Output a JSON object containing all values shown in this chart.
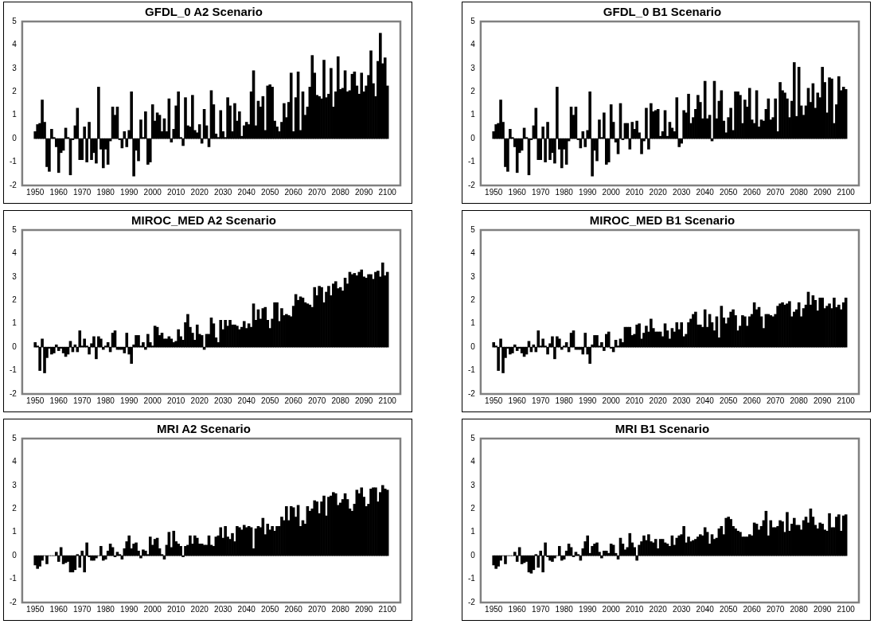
{
  "chart_data": [
    {
      "type": "bar",
      "title": "GFDL_0 A2 Scenario",
      "color": "#000000",
      "xlim": [
        1949.5,
        2100.5
      ],
      "xticks": [
        1950,
        1960,
        1970,
        1980,
        1990,
        2000,
        2010,
        2020,
        2030,
        2040,
        2050,
        2060,
        2070,
        2080,
        2090,
        2100
      ],
      "ylim": [
        -2,
        5
      ],
      "yticks": [
        -2,
        -1,
        0,
        1,
        2,
        3,
        4,
        5
      ],
      "x": [
        1950,
        1951,
        1952,
        1953,
        1954,
        1955,
        1956,
        1957,
        1958,
        1959,
        1960,
        1961,
        1962,
        1963,
        1964,
        1965,
        1966,
        1967,
        1968,
        1969,
        1970,
        1971,
        1972,
        1973,
        1974,
        1975,
        1976,
        1977,
        1978,
        1979,
        1980,
        1981,
        1982,
        1983,
        1984,
        1985,
        1986,
        1987,
        1988,
        1989,
        1990,
        1991,
        1992,
        1993,
        1994,
        1995,
        1996,
        1997,
        1998,
        1999,
        2000,
        2001,
        2002,
        2003,
        2004,
        2005,
        2006,
        2007,
        2008,
        2009,
        2010,
        2011,
        2012,
        2013,
        2014,
        2015,
        2016,
        2017,
        2018,
        2019,
        2020,
        2021,
        2022,
        2023,
        2024,
        2025,
        2026,
        2027,
        2028,
        2029,
        2030,
        2031,
        2032,
        2033,
        2034,
        2035,
        2036,
        2037,
        2038,
        2039,
        2040,
        2041,
        2042,
        2043,
        2044,
        2045,
        2046,
        2047,
        2048,
        2049,
        2050,
        2051,
        2052,
        2053,
        2054,
        2055,
        2056,
        2057,
        2058,
        2059,
        2060,
        2061,
        2062,
        2063,
        2064,
        2065,
        2066,
        2067,
        2068,
        2069,
        2070,
        2071,
        2072,
        2073,
        2074,
        2075,
        2076,
        2077,
        2078,
        2079,
        2080,
        2081,
        2082,
        2083,
        2084,
        2085,
        2086,
        2087,
        2088,
        2089,
        2090,
        2091,
        2092,
        2093,
        2094,
        2095,
        2096,
        2097,
        2098,
        2099,
        2100
      ],
      "values": [
        0.3,
        0.6,
        0.65,
        1.65,
        0.7,
        -1.2,
        -1.4,
        0.4,
        0.05,
        -0.35,
        -1.45,
        -0.6,
        -0.5,
        0.45,
        0.05,
        -1.55,
        -0.05,
        0.55,
        1.3,
        -0.9,
        -0.9,
        0.5,
        -1.0,
        0.7,
        -0.9,
        -0.6,
        -1.05,
        2.2,
        -0.45,
        -1.25,
        -0.45,
        -1.1,
        -0.1,
        1.35,
        1.0,
        1.35,
        -0.05,
        -0.4,
        0.3,
        -0.35,
        0.35,
        2.0,
        -1.6,
        -0.5,
        -0.95,
        0.8,
        0.05,
        1.15,
        -1.1,
        -1.0,
        1.45,
        0.75,
        1.1,
        1.0,
        0.3,
        0.85,
        0.3,
        1.7,
        -0.15,
        0.4,
        1.4,
        2.0,
        0.05,
        -0.3,
        1.75,
        0.55,
        0.5,
        1.85,
        0.35,
        0.25,
        0.6,
        -0.2,
        1.25,
        0.55,
        -0.35,
        2.05,
        1.45,
        0.2,
        0.05,
        1.2,
        0.3,
        0.05,
        1.75,
        1.4,
        0.3,
        1.5,
        0.75,
        1.15,
        0.1,
        0.55,
        0.7,
        0.6,
        2.0,
        2.9,
        0.55,
        1.6,
        1.35,
        1.8,
        0.35,
        2.25,
        2.3,
        2.2,
        0.75,
        0.5,
        0.3,
        0.7,
        1.5,
        0.9,
        1.55,
        2.8,
        0.3,
        1.75,
        2.85,
        0.35,
        2.0,
        1.0,
        1.35,
        2.2,
        3.55,
        2.8,
        1.85,
        1.8,
        1.7,
        3.35,
        1.75,
        1.9,
        3.0,
        1.35,
        2.0,
        3.5,
        2.1,
        2.15,
        2.9,
        2.0,
        2.05,
        2.75,
        2.85,
        2.25,
        1.9,
        2.8,
        2.0,
        2.25,
        2.7,
        3.75,
        2.35,
        1.8,
        3.3,
        4.5,
        3.2,
        3.45,
        2.25
      ]
    },
    {
      "type": "bar",
      "title": "GFDL_0 B1 Scenario",
      "color": "#000000",
      "xlim": [
        1949.5,
        2100.5
      ],
      "xticks": [
        1950,
        1960,
        1970,
        1980,
        1990,
        2000,
        2010,
        2020,
        2030,
        2040,
        2050,
        2060,
        2070,
        2080,
        2090,
        2100
      ],
      "ylim": [
        -2,
        5
      ],
      "yticks": [
        -2,
        -1,
        0,
        1,
        2,
        3,
        4,
        5
      ],
      "x": [
        1950,
        1951,
        1952,
        1953,
        1954,
        1955,
        1956,
        1957,
        1958,
        1959,
        1960,
        1961,
        1962,
        1963,
        1964,
        1965,
        1966,
        1967,
        1968,
        1969,
        1970,
        1971,
        1972,
        1973,
        1974,
        1975,
        1976,
        1977,
        1978,
        1979,
        1980,
        1981,
        1982,
        1983,
        1984,
        1985,
        1986,
        1987,
        1988,
        1989,
        1990,
        1991,
        1992,
        1993,
        1994,
        1995,
        1996,
        1997,
        1998,
        1999,
        2000,
        2001,
        2002,
        2003,
        2004,
        2005,
        2006,
        2007,
        2008,
        2009,
        2010,
        2011,
        2012,
        2013,
        2014,
        2015,
        2016,
        2017,
        2018,
        2019,
        2020,
        2021,
        2022,
        2023,
        2024,
        2025,
        2026,
        2027,
        2028,
        2029,
        2030,
        2031,
        2032,
        2033,
        2034,
        2035,
        2036,
        2037,
        2038,
        2039,
        2040,
        2041,
        2042,
        2043,
        2044,
        2045,
        2046,
        2047,
        2048,
        2049,
        2050,
        2051,
        2052,
        2053,
        2054,
        2055,
        2056,
        2057,
        2058,
        2059,
        2060,
        2061,
        2062,
        2063,
        2064,
        2065,
        2066,
        2067,
        2068,
        2069,
        2070,
        2071,
        2072,
        2073,
        2074,
        2075,
        2076,
        2077,
        2078,
        2079,
        2080,
        2081,
        2082,
        2083,
        2084,
        2085,
        2086,
        2087,
        2088,
        2089,
        2090,
        2091,
        2092,
        2093,
        2094,
        2095,
        2096,
        2097,
        2098,
        2099,
        2100
      ],
      "values": [
        0.3,
        0.6,
        0.65,
        1.65,
        0.7,
        -1.2,
        -1.4,
        0.4,
        0.05,
        -0.35,
        -1.45,
        -0.6,
        -0.5,
        0.45,
        0.05,
        -1.55,
        -0.05,
        0.55,
        1.3,
        -0.9,
        -0.9,
        0.5,
        -1.0,
        0.7,
        -0.9,
        -0.6,
        -1.05,
        2.2,
        -0.45,
        -1.25,
        -0.45,
        -1.1,
        -0.1,
        1.35,
        1.0,
        1.35,
        -0.05,
        -0.4,
        0.3,
        -0.35,
        0.35,
        2.0,
        -1.6,
        -0.5,
        -0.95,
        0.8,
        0.05,
        1.1,
        -1.1,
        -1.0,
        1.45,
        0.7,
        -0.15,
        -0.65,
        1.5,
        -0.05,
        0.65,
        0.65,
        -0.45,
        0.7,
        0.4,
        0.75,
        0.25,
        -0.65,
        -0.1,
        1.3,
        -0.45,
        1.5,
        1.15,
        1.2,
        1.25,
        0.1,
        0.3,
        1.2,
        0.1,
        0.7,
        0.45,
        0.3,
        1.75,
        -0.35,
        -0.2,
        1.2,
        1.1,
        1.9,
        0.65,
        0.9,
        1.25,
        1.85,
        1.55,
        0.85,
        2.45,
        0.85,
        1.0,
        -0.1,
        2.45,
        0.85,
        1.6,
        2.05,
        0.75,
        0.25,
        0.9,
        1.3,
        0.35,
        2.0,
        2.0,
        1.85,
        0.65,
        1.65,
        1.35,
        2.15,
        0.8,
        0.65,
        2.05,
        0.5,
        0.8,
        0.75,
        1.25,
        1.7,
        0.8,
        0.9,
        1.7,
        0.3,
        2.4,
        2.05,
        1.95,
        1.7,
        0.9,
        1.6,
        3.25,
        0.95,
        3.05,
        1.4,
        1.0,
        1.4,
        2.15,
        1.55,
        2.35,
        1.3,
        1.95,
        1.75,
        3.05,
        2.4,
        1.1,
        2.6,
        2.55,
        0.65,
        1.45,
        2.65,
        2.05,
        2.2,
        2.1
      ]
    },
    {
      "type": "bar",
      "title": "MIROC_MED A2 Scenario",
      "color": "#000000",
      "xlim": [
        1949.5,
        2100.5
      ],
      "xticks": [
        1950,
        1960,
        1970,
        1980,
        1990,
        2000,
        2010,
        2020,
        2030,
        2040,
        2050,
        2060,
        2070,
        2080,
        2090,
        2100
      ],
      "ylim": [
        -2,
        5
      ],
      "yticks": [
        -2,
        -1,
        0,
        1,
        2,
        3,
        4,
        5
      ],
      "x": [
        1950,
        1951,
        1952,
        1953,
        1954,
        1955,
        1956,
        1957,
        1958,
        1959,
        1960,
        1961,
        1962,
        1963,
        1964,
        1965,
        1966,
        1967,
        1968,
        1969,
        1970,
        1971,
        1972,
        1973,
        1974,
        1975,
        1976,
        1977,
        1978,
        1979,
        1980,
        1981,
        1982,
        1983,
        1984,
        1985,
        1986,
        1987,
        1988,
        1989,
        1990,
        1991,
        1992,
        1993,
        1994,
        1995,
        1996,
        1997,
        1998,
        1999,
        2000,
        2001,
        2002,
        2003,
        2004,
        2005,
        2006,
        2007,
        2008,
        2009,
        2010,
        2011,
        2012,
        2013,
        2014,
        2015,
        2016,
        2017,
        2018,
        2019,
        2020,
        2021,
        2022,
        2023,
        2024,
        2025,
        2026,
        2027,
        2028,
        2029,
        2030,
        2031,
        2032,
        2033,
        2034,
        2035,
        2036,
        2037,
        2038,
        2039,
        2040,
        2041,
        2042,
        2043,
        2044,
        2045,
        2046,
        2047,
        2048,
        2049,
        2050,
        2051,
        2052,
        2053,
        2054,
        2055,
        2056,
        2057,
        2058,
        2059,
        2060,
        2061,
        2062,
        2063,
        2064,
        2065,
        2066,
        2067,
        2068,
        2069,
        2070,
        2071,
        2072,
        2073,
        2074,
        2075,
        2076,
        2077,
        2078,
        2079,
        2080,
        2081,
        2082,
        2083,
        2084,
        2085,
        2086,
        2087,
        2088,
        2089,
        2090,
        2091,
        2092,
        2093,
        2094,
        2095,
        2096,
        2097,
        2098,
        2099,
        2100
      ],
      "values": [
        0.2,
        0.05,
        -1.0,
        0.35,
        -1.1,
        -0.45,
        -0.05,
        -0.3,
        -0.25,
        0.1,
        -0.15,
        -0.05,
        -0.25,
        -0.4,
        -0.3,
        0.25,
        -0.2,
        0.1,
        -0.2,
        0.7,
        0.05,
        0.35,
        0.05,
        -0.3,
        0.15,
        0.45,
        -0.5,
        0.45,
        0.35,
        -0.1,
        0.05,
        0.2,
        -0.2,
        0.6,
        0.7,
        -0.1,
        -0.1,
        -0.1,
        -0.25,
        0.6,
        -0.3,
        -0.7,
        0.1,
        0.5,
        0.5,
        0.05,
        0.2,
        -0.1,
        0.55,
        0.2,
        0.05,
        0.9,
        0.85,
        0.5,
        0.6,
        0.35,
        0.35,
        0.45,
        0.35,
        0.2,
        0.25,
        0.75,
        0.45,
        0.3,
        1.05,
        1.4,
        0.85,
        0.6,
        0.3,
        0.95,
        0.55,
        0.5,
        -0.1,
        0.55,
        0.55,
        1.25,
        1.0,
        0.4,
        0.2,
        1.15,
        0.75,
        1.15,
        0.9,
        1.15,
        0.95,
        0.95,
        0.9,
        0.75,
        0.85,
        1.1,
        0.8,
        1.0,
        0.85,
        1.85,
        1.15,
        1.6,
        1.2,
        1.65,
        1.7,
        1.15,
        0.8,
        1.2,
        1.9,
        1.9,
        1.1,
        1.65,
        1.35,
        1.4,
        1.35,
        1.3,
        1.75,
        2.25,
        2.0,
        2.15,
        2.1,
        1.9,
        1.85,
        1.8,
        1.7,
        2.55,
        2.2,
        2.6,
        2.55,
        1.9,
        2.35,
        2.6,
        2.2,
        2.7,
        2.8,
        2.5,
        2.55,
        2.4,
        2.95,
        2.7,
        3.2,
        3.1,
        3.15,
        3.05,
        3.2,
        3.3,
        3.0,
        2.95,
        3.1,
        3.1,
        2.9,
        3.2,
        3.25,
        3.0,
        3.6,
        3.05,
        3.2
      ]
    },
    {
      "type": "bar",
      "title": "MIROC_MED B1 Scenario",
      "color": "#000000",
      "xlim": [
        1949.5,
        2100.5
      ],
      "xticks": [
        1950,
        1960,
        1970,
        1980,
        1990,
        2000,
        2010,
        2020,
        2030,
        2040,
        2050,
        2060,
        2070,
        2080,
        2090,
        2100
      ],
      "ylim": [
        -2,
        5
      ],
      "yticks": [
        -2,
        -1,
        0,
        1,
        2,
        3,
        4,
        5
      ],
      "x": [
        1950,
        1951,
        1952,
        1953,
        1954,
        1955,
        1956,
        1957,
        1958,
        1959,
        1960,
        1961,
        1962,
        1963,
        1964,
        1965,
        1966,
        1967,
        1968,
        1969,
        1970,
        1971,
        1972,
        1973,
        1974,
        1975,
        1976,
        1977,
        1978,
        1979,
        1980,
        1981,
        1982,
        1983,
        1984,
        1985,
        1986,
        1987,
        1988,
        1989,
        1990,
        1991,
        1992,
        1993,
        1994,
        1995,
        1996,
        1997,
        1998,
        1999,
        2000,
        2001,
        2002,
        2003,
        2004,
        2005,
        2006,
        2007,
        2008,
        2009,
        2010,
        2011,
        2012,
        2013,
        2014,
        2015,
        2016,
        2017,
        2018,
        2019,
        2020,
        2021,
        2022,
        2023,
        2024,
        2025,
        2026,
        2027,
        2028,
        2029,
        2030,
        2031,
        2032,
        2033,
        2034,
        2035,
        2036,
        2037,
        2038,
        2039,
        2040,
        2041,
        2042,
        2043,
        2044,
        2045,
        2046,
        2047,
        2048,
        2049,
        2050,
        2051,
        2052,
        2053,
        2054,
        2055,
        2056,
        2057,
        2058,
        2059,
        2060,
        2061,
        2062,
        2063,
        2064,
        2065,
        2066,
        2067,
        2068,
        2069,
        2070,
        2071,
        2072,
        2073,
        2074,
        2075,
        2076,
        2077,
        2078,
        2079,
        2080,
        2081,
        2082,
        2083,
        2084,
        2085,
        2086,
        2087,
        2088,
        2089,
        2090,
        2091,
        2092,
        2093,
        2094,
        2095,
        2096,
        2097,
        2098,
        2099,
        2100
      ],
      "values": [
        0.2,
        0.05,
        -1.0,
        0.35,
        -1.1,
        -0.45,
        -0.05,
        -0.3,
        -0.25,
        0.1,
        -0.15,
        -0.05,
        -0.25,
        -0.4,
        -0.3,
        0.25,
        -0.2,
        0.1,
        -0.2,
        0.7,
        0.05,
        0.35,
        0.05,
        -0.3,
        0.15,
        0.45,
        -0.5,
        0.45,
        0.35,
        -0.1,
        0.05,
        0.2,
        -0.2,
        0.6,
        0.7,
        -0.1,
        -0.1,
        -0.1,
        -0.3,
        0.6,
        -0.3,
        -0.7,
        0.1,
        0.5,
        0.5,
        0.05,
        0.2,
        -0.15,
        0.55,
        0.65,
        -0.05,
        -0.2,
        0.3,
        0.05,
        0.35,
        0.2,
        0.85,
        0.85,
        0.85,
        0.5,
        0.55,
        0.95,
        1.0,
        0.35,
        0.6,
        0.9,
        0.65,
        1.2,
        0.8,
        0.65,
        0.65,
        0.65,
        0.45,
        1.0,
        0.7,
        0.35,
        0.8,
        0.65,
        1.05,
        0.75,
        1.05,
        0.45,
        0.55,
        1.05,
        1.2,
        1.4,
        1.5,
        0.95,
        0.95,
        0.85,
        1.6,
        0.85,
        1.4,
        1.05,
        0.7,
        1.3,
        0.4,
        1.75,
        1.25,
        1.0,
        1.25,
        1.5,
        1.6,
        1.35,
        0.7,
        0.9,
        1.35,
        1.3,
        0.9,
        1.3,
        1.4,
        1.9,
        1.6,
        1.7,
        1.3,
        0.8,
        1.4,
        1.4,
        1.35,
        1.3,
        1.4,
        1.75,
        1.85,
        1.9,
        1.8,
        1.85,
        1.95,
        1.3,
        1.5,
        1.6,
        1.9,
        1.3,
        1.65,
        1.8,
        2.35,
        1.8,
        2.2,
        2.0,
        1.55,
        2.1,
        2.1,
        1.65,
        1.75,
        1.85,
        1.65,
        2.1,
        1.7,
        1.8,
        1.6,
        1.9,
        2.1
      ]
    },
    {
      "type": "bar",
      "title": "MRI A2 Scenario",
      "color": "#000000",
      "xlim": [
        1949.5,
        2100.5
      ],
      "xticks": [
        1950,
        1960,
        1970,
        1980,
        1990,
        2000,
        2010,
        2020,
        2030,
        2040,
        2050,
        2060,
        2070,
        2080,
        2090,
        2100
      ],
      "ylim": [
        -2,
        5
      ],
      "yticks": [
        -2,
        -1,
        0,
        1,
        2,
        3,
        4,
        5
      ],
      "x": [
        1950,
        1951,
        1952,
        1953,
        1954,
        1955,
        1956,
        1957,
        1958,
        1959,
        1960,
        1961,
        1962,
        1963,
        1964,
        1965,
        1966,
        1967,
        1968,
        1969,
        1970,
        1971,
        1972,
        1973,
        1974,
        1975,
        1976,
        1977,
        1978,
        1979,
        1980,
        1981,
        1982,
        1983,
        1984,
        1985,
        1986,
        1987,
        1988,
        1989,
        1990,
        1991,
        1992,
        1993,
        1994,
        1995,
        1996,
        1997,
        1998,
        1999,
        2000,
        2001,
        2002,
        2003,
        2004,
        2005,
        2006,
        2007,
        2008,
        2009,
        2010,
        2011,
        2012,
        2013,
        2014,
        2015,
        2016,
        2017,
        2018,
        2019,
        2020,
        2021,
        2022,
        2023,
        2024,
        2025,
        2026,
        2027,
        2028,
        2029,
        2030,
        2031,
        2032,
        2033,
        2034,
        2035,
        2036,
        2037,
        2038,
        2039,
        2040,
        2041,
        2042,
        2043,
        2044,
        2045,
        2046,
        2047,
        2048,
        2049,
        2050,
        2051,
        2052,
        2053,
        2054,
        2055,
        2056,
        2057,
        2058,
        2059,
        2060,
        2061,
        2062,
        2063,
        2064,
        2065,
        2066,
        2067,
        2068,
        2069,
        2070,
        2071,
        2072,
        2073,
        2074,
        2075,
        2076,
        2077,
        2078,
        2079,
        2080,
        2081,
        2082,
        2083,
        2084,
        2085,
        2086,
        2087,
        2088,
        2089,
        2090,
        2091,
        2092,
        2093,
        2094,
        2095,
        2096,
        2097,
        2098,
        2099,
        2100
      ],
      "values": [
        -0.4,
        -0.55,
        -0.45,
        -0.2,
        0.0,
        -0.35,
        0.0,
        0.0,
        0.0,
        0.15,
        -0.25,
        0.35,
        -0.35,
        -0.3,
        -0.25,
        -0.7,
        -0.7,
        -0.6,
        0.05,
        -0.5,
        0.2,
        -0.7,
        0.55,
        -0.05,
        -0.2,
        -0.2,
        -0.1,
        0.0,
        0.4,
        -0.2,
        -0.15,
        0.2,
        0.5,
        0.35,
        -0.05,
        0.15,
        0.05,
        -0.15,
        0.3,
        0.6,
        0.85,
        0.3,
        0.5,
        0.55,
        0.2,
        -0.1,
        0.25,
        0.2,
        0.05,
        0.8,
        0.45,
        0.7,
        0.75,
        0.3,
        0.05,
        -0.15,
        0.45,
        1.0,
        0.35,
        1.05,
        0.6,
        0.5,
        0.4,
        -0.05,
        0.4,
        0.45,
        0.85,
        0.5,
        0.85,
        0.75,
        0.5,
        0.5,
        0.45,
        0.45,
        0.85,
        0.45,
        0.4,
        0.8,
        0.85,
        1.2,
        0.75,
        1.25,
        0.8,
        0.7,
        0.95,
        0.6,
        1.25,
        1.2,
        1.1,
        1.3,
        1.2,
        1.25,
        1.2,
        0.3,
        1.15,
        1.25,
        1.2,
        1.6,
        0.9,
        1.35,
        1.1,
        1.25,
        1.05,
        1.25,
        1.25,
        1.65,
        1.5,
        2.1,
        1.5,
        2.1,
        2.05,
        1.65,
        2.15,
        1.25,
        1.5,
        1.35,
        2.1,
        1.9,
        2.0,
        2.35,
        2.3,
        1.8,
        2.3,
        2.55,
        1.7,
        2.5,
        2.55,
        2.7,
        2.65,
        2.15,
        2.25,
        2.4,
        2.65,
        2.4,
        2.0,
        1.9,
        2.2,
        2.8,
        2.65,
        2.9,
        2.5,
        2.1,
        2.2,
        2.85,
        2.9,
        2.9,
        2.3,
        2.7,
        3.0,
        2.85,
        2.8
      ]
    },
    {
      "type": "bar",
      "title": "MRI B1 Scenario",
      "color": "#000000",
      "xlim": [
        1949.5,
        2100.5
      ],
      "xticks": [
        1950,
        1960,
        1970,
        1980,
        1990,
        2000,
        2010,
        2020,
        2030,
        2040,
        2050,
        2060,
        2070,
        2080,
        2090,
        2100
      ],
      "ylim": [
        -2,
        5
      ],
      "yticks": [
        -2,
        -1,
        0,
        1,
        2,
        3,
        4,
        5
      ],
      "x": [
        1950,
        1951,
        1952,
        1953,
        1954,
        1955,
        1956,
        1957,
        1958,
        1959,
        1960,
        1961,
        1962,
        1963,
        1964,
        1965,
        1966,
        1967,
        1968,
        1969,
        1970,
        1971,
        1972,
        1973,
        1974,
        1975,
        1976,
        1977,
        1978,
        1979,
        1980,
        1981,
        1982,
        1983,
        1984,
        1985,
        1986,
        1987,
        1988,
        1989,
        1990,
        1991,
        1992,
        1993,
        1994,
        1995,
        1996,
        1997,
        1998,
        1999,
        2000,
        2001,
        2002,
        2003,
        2004,
        2005,
        2006,
        2007,
        2008,
        2009,
        2010,
        2011,
        2012,
        2013,
        2014,
        2015,
        2016,
        2017,
        2018,
        2019,
        2020,
        2021,
        2022,
        2023,
        2024,
        2025,
        2026,
        2027,
        2028,
        2029,
        2030,
        2031,
        2032,
        2033,
        2034,
        2035,
        2036,
        2037,
        2038,
        2039,
        2040,
        2041,
        2042,
        2043,
        2044,
        2045,
        2046,
        2047,
        2048,
        2049,
        2050,
        2051,
        2052,
        2053,
        2054,
        2055,
        2056,
        2057,
        2058,
        2059,
        2060,
        2061,
        2062,
        2063,
        2064,
        2065,
        2066,
        2067,
        2068,
        2069,
        2070,
        2071,
        2072,
        2073,
        2074,
        2075,
        2076,
        2077,
        2078,
        2079,
        2080,
        2081,
        2082,
        2083,
        2084,
        2085,
        2086,
        2087,
        2088,
        2089,
        2090,
        2091,
        2092,
        2093,
        2094,
        2095,
        2096,
        2097,
        2098,
        2099,
        2100
      ],
      "values": [
        -0.4,
        -0.55,
        -0.45,
        -0.2,
        0.0,
        -0.35,
        0.0,
        0.0,
        0.0,
        0.15,
        -0.25,
        0.35,
        -0.35,
        -0.3,
        -0.25,
        -0.7,
        -0.75,
        -0.6,
        0.05,
        -0.5,
        0.2,
        -0.7,
        0.55,
        -0.05,
        -0.2,
        -0.25,
        -0.1,
        0.0,
        0.4,
        -0.2,
        -0.15,
        0.2,
        0.5,
        0.35,
        -0.05,
        0.15,
        0.05,
        -0.2,
        0.3,
        0.6,
        0.85,
        0.1,
        0.4,
        0.5,
        0.55,
        0.15,
        -0.1,
        0.2,
        0.2,
        0.1,
        0.5,
        0.45,
        0.1,
        -0.15,
        0.75,
        0.5,
        0.25,
        0.35,
        0.95,
        0.55,
        0.35,
        -0.2,
        0.45,
        0.6,
        0.85,
        0.65,
        0.9,
        0.6,
        0.55,
        0.7,
        0.3,
        0.7,
        0.7,
        0.55,
        0.5,
        0.4,
        0.85,
        0.45,
        0.75,
        0.85,
        0.9,
        1.25,
        0.55,
        0.8,
        0.6,
        0.65,
        0.7,
        0.8,
        0.9,
        0.85,
        1.2,
        1.0,
        0.5,
        0.9,
        0.7,
        0.75,
        1.15,
        1.25,
        0.9,
        1.6,
        1.65,
        1.55,
        1.25,
        1.15,
        1.05,
        1.0,
        0.8,
        0.8,
        0.8,
        0.9,
        0.85,
        1.4,
        1.35,
        1.1,
        1.25,
        1.5,
        1.9,
        0.85,
        1.5,
        1.2,
        1.2,
        1.25,
        1.5,
        1.45,
        1.0,
        1.85,
        1.05,
        1.35,
        1.6,
        1.3,
        1.3,
        1.1,
        1.5,
        1.65,
        1.4,
        2.0,
        1.65,
        1.3,
        1.15,
        1.4,
        1.35,
        1.1,
        1.05,
        1.8,
        1.2,
        1.2,
        1.65,
        1.75,
        1.05,
        1.7,
        1.75
      ]
    }
  ]
}
